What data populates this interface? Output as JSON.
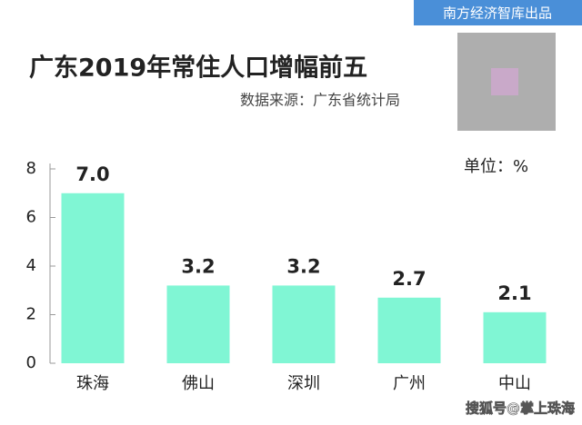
{
  "chart_data": {
    "type": "bar",
    "brand": "南方经济智库出品",
    "title": "广东2019年常住人口增幅前五",
    "subtitle": "数据来源：广东省统计局",
    "unit": "单位：%",
    "watermark": "搜狐号@掌上珠海",
    "categories": [
      "珠海",
      "佛山",
      "深圳",
      "广州",
      "中山"
    ],
    "values": [
      7.0,
      3.2,
      3.2,
      2.7,
      2.1
    ],
    "value_labels": [
      "7.0",
      "3.2",
      "3.2",
      "2.7",
      "2.1"
    ],
    "color": "#80f6d4",
    "ylim": [
      0,
      8
    ],
    "yticks": [
      0,
      2,
      4,
      6,
      8
    ]
  }
}
